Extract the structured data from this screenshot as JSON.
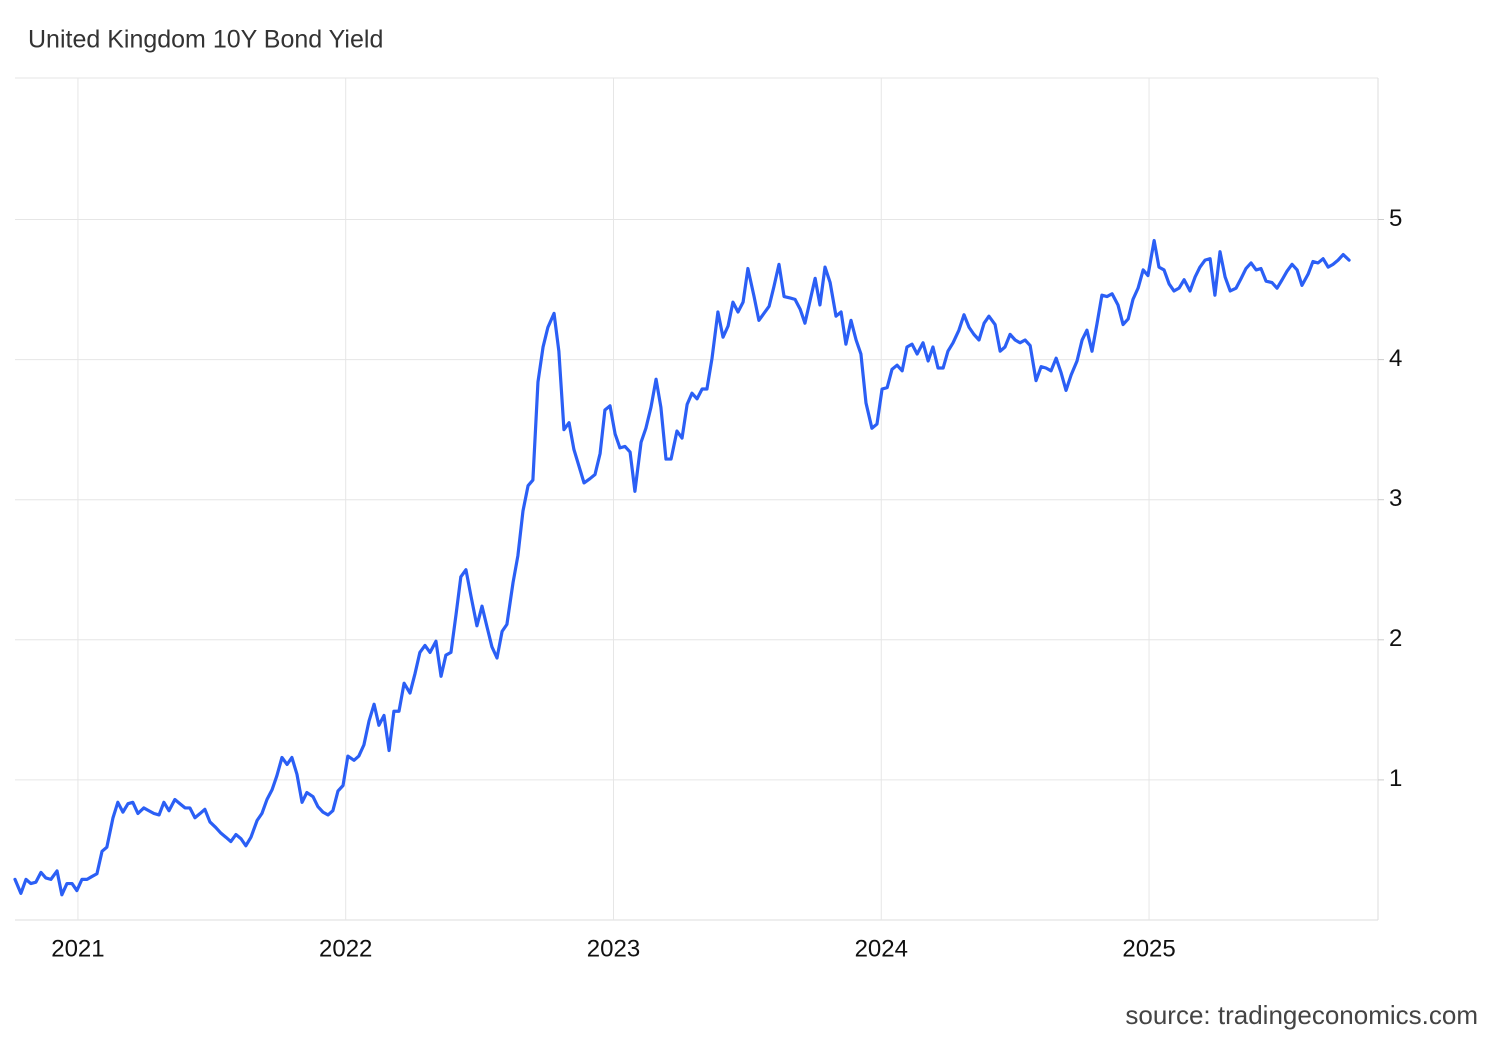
{
  "chart_data": {
    "type": "line",
    "title": "United Kingdom 10Y Bond Yield",
    "source": "source: tradingeconomics.com",
    "color": "#2b5ff5",
    "grid": true,
    "xlim": [
      2020.765,
      2025.855
    ],
    "xticks": [
      2021,
      2022,
      2023,
      2024,
      2025
    ],
    "ylim": [
      0,
      6.01
    ],
    "yticks": [
      1,
      2,
      3,
      4,
      5
    ],
    "x": [
      2020.765,
      2020.787,
      2020.806,
      2020.824,
      2020.843,
      2020.862,
      2020.88,
      2020.899,
      2020.922,
      2020.94,
      2020.959,
      2020.978,
      2020.996,
      2021.015,
      2021.034,
      2021.052,
      2021.071,
      2021.09,
      2021.108,
      2021.131,
      2021.149,
      2021.168,
      2021.187,
      2021.205,
      2021.224,
      2021.246,
      2021.265,
      2021.284,
      2021.303,
      2021.321,
      2021.34,
      2021.362,
      2021.381,
      2021.4,
      2021.418,
      2021.437,
      2021.456,
      2021.474,
      2021.493,
      2021.515,
      2021.534,
      2021.553,
      2021.571,
      2021.59,
      2021.609,
      2021.627,
      2021.646,
      2021.669,
      2021.687,
      2021.706,
      2021.725,
      2021.743,
      2021.762,
      2021.781,
      2021.799,
      2021.818,
      2021.837,
      2021.855,
      2021.878,
      2021.896,
      2021.915,
      2021.934,
      2021.952,
      2021.971,
      2021.99,
      2022.008,
      2022.031,
      2022.049,
      2022.068,
      2022.087,
      2022.106,
      2022.124,
      2022.143,
      2022.162,
      2022.18,
      2022.199,
      2022.218,
      2022.24,
      2022.259,
      2022.277,
      2022.296,
      2022.315,
      2022.337,
      2022.356,
      2022.374,
      2022.393,
      2022.412,
      2022.43,
      2022.449,
      2022.468,
      2022.49,
      2022.509,
      2022.528,
      2022.546,
      2022.565,
      2022.584,
      2022.602,
      2022.625,
      2022.643,
      2022.662,
      2022.681,
      2022.699,
      2022.718,
      2022.737,
      2022.755,
      2022.778,
      2022.796,
      2022.815,
      2022.834,
      2022.852,
      2022.871,
      2022.89,
      2022.912,
      2022.931,
      2022.95,
      2022.968,
      2022.987,
      2023.006,
      2023.024,
      2023.043,
      2023.062,
      2023.08,
      2023.103,
      2023.121,
      2023.14,
      2023.159,
      2023.177,
      2023.196,
      2023.215,
      2023.237,
      2023.256,
      2023.275,
      2023.293,
      2023.312,
      2023.331,
      2023.349,
      2023.368,
      2023.39,
      2023.409,
      2023.428,
      2023.446,
      2023.465,
      2023.484,
      2023.502,
      2023.525,
      2023.543,
      2023.562,
      2023.581,
      2023.599,
      2023.618,
      2023.637,
      2023.659,
      2023.678,
      2023.697,
      2023.715,
      2023.734,
      2023.753,
      2023.771,
      2023.79,
      2023.809,
      2023.831,
      2023.85,
      2023.868,
      2023.887,
      2023.906,
      2023.924,
      2023.943,
      2023.965,
      2023.984,
      2024.003,
      2024.022,
      2024.04,
      2024.059,
      2024.078,
      2024.096,
      2024.115,
      2024.134,
      2024.156,
      2024.175,
      2024.193,
      2024.212,
      2024.231,
      2024.249,
      2024.268,
      2024.29,
      2024.309,
      2024.328,
      2024.346,
      2024.365,
      2024.384,
      2024.402,
      2024.425,
      2024.444,
      2024.462,
      2024.481,
      2024.5,
      2024.518,
      2024.537,
      2024.556,
      2024.578,
      2024.597,
      2024.615,
      2024.634,
      2024.653,
      2024.671,
      2024.69,
      2024.709,
      2024.731,
      2024.75,
      2024.768,
      2024.787,
      2024.806,
      2024.824,
      2024.843,
      2024.862,
      2024.884,
      2024.903,
      2024.922,
      2024.94,
      2024.959,
      2024.978,
      2024.996,
      2025.019,
      2025.037,
      2025.056,
      2025.075,
      2025.093,
      2025.112,
      2025.131,
      2025.153,
      2025.172,
      2025.19,
      2025.209,
      2025.228,
      2025.246,
      2025.265,
      2025.284,
      2025.303,
      2025.325,
      2025.344,
      2025.362,
      2025.381,
      2025.4,
      2025.418,
      2025.437,
      2025.459,
      2025.478,
      2025.497,
      2025.515,
      2025.534,
      2025.553,
      2025.571,
      2025.594,
      2025.612,
      2025.631,
      2025.65,
      2025.669,
      2025.687,
      2025.706,
      2025.725,
      2025.747
    ],
    "values": [
      0.29,
      0.19,
      0.29,
      0.26,
      0.27,
      0.34,
      0.3,
      0.29,
      0.35,
      0.18,
      0.26,
      0.26,
      0.21,
      0.29,
      0.29,
      0.31,
      0.33,
      0.49,
      0.52,
      0.73,
      0.84,
      0.77,
      0.83,
      0.84,
      0.76,
      0.8,
      0.78,
      0.76,
      0.75,
      0.84,
      0.78,
      0.86,
      0.83,
      0.8,
      0.8,
      0.73,
      0.76,
      0.79,
      0.7,
      0.66,
      0.62,
      0.59,
      0.56,
      0.61,
      0.58,
      0.53,
      0.59,
      0.71,
      0.76,
      0.86,
      0.93,
      1.03,
      1.16,
      1.11,
      1.16,
      1.04,
      0.84,
      0.91,
      0.88,
      0.81,
      0.77,
      0.75,
      0.78,
      0.92,
      0.96,
      1.17,
      1.14,
      1.17,
      1.25,
      1.42,
      1.54,
      1.39,
      1.46,
      1.21,
      1.49,
      1.49,
      1.69,
      1.62,
      1.76,
      1.91,
      1.96,
      1.91,
      1.99,
      1.74,
      1.89,
      1.91,
      2.18,
      2.45,
      2.5,
      2.31,
      2.1,
      2.24,
      2.09,
      1.95,
      1.87,
      2.06,
      2.11,
      2.41,
      2.6,
      2.92,
      3.1,
      3.14,
      3.84,
      4.09,
      4.23,
      4.33,
      4.06,
      3.5,
      3.55,
      3.36,
      3.24,
      3.12,
      3.15,
      3.18,
      3.33,
      3.64,
      3.67,
      3.47,
      3.37,
      3.38,
      3.34,
      3.06,
      3.41,
      3.51,
      3.66,
      3.86,
      3.66,
      3.29,
      3.29,
      3.49,
      3.44,
      3.68,
      3.76,
      3.72,
      3.79,
      3.79,
      4.01,
      4.34,
      4.16,
      4.24,
      4.41,
      4.34,
      4.41,
      4.65,
      4.45,
      4.28,
      4.33,
      4.38,
      4.52,
      4.68,
      4.45,
      4.44,
      4.43,
      4.36,
      4.26,
      4.42,
      4.58,
      4.39,
      4.66,
      4.55,
      4.31,
      4.34,
      4.11,
      4.28,
      4.14,
      4.04,
      3.69,
      3.51,
      3.54,
      3.79,
      3.8,
      3.93,
      3.96,
      3.92,
      4.09,
      4.11,
      4.04,
      4.12,
      3.99,
      4.09,
      3.94,
      3.94,
      4.06,
      4.12,
      4.21,
      4.32,
      4.23,
      4.18,
      4.14,
      4.26,
      4.31,
      4.25,
      4.06,
      4.09,
      4.18,
      4.14,
      4.12,
      4.14,
      4.1,
      3.85,
      3.95,
      3.94,
      3.92,
      4.01,
      3.91,
      3.78,
      3.89,
      3.99,
      4.14,
      4.21,
      4.06,
      4.26,
      4.46,
      4.45,
      4.47,
      4.39,
      4.25,
      4.29,
      4.43,
      4.51,
      4.64,
      4.6,
      4.85,
      4.66,
      4.64,
      4.54,
      4.49,
      4.51,
      4.57,
      4.49,
      4.59,
      4.66,
      4.71,
      4.72,
      4.46,
      4.77,
      4.59,
      4.49,
      4.51,
      4.58,
      4.65,
      4.69,
      4.64,
      4.65,
      4.56,
      4.55,
      4.51,
      4.57,
      4.63,
      4.68,
      4.64,
      4.53,
      4.61,
      4.7,
      4.69,
      4.72,
      4.66,
      4.68,
      4.71,
      4.75,
      4.71
    ]
  }
}
